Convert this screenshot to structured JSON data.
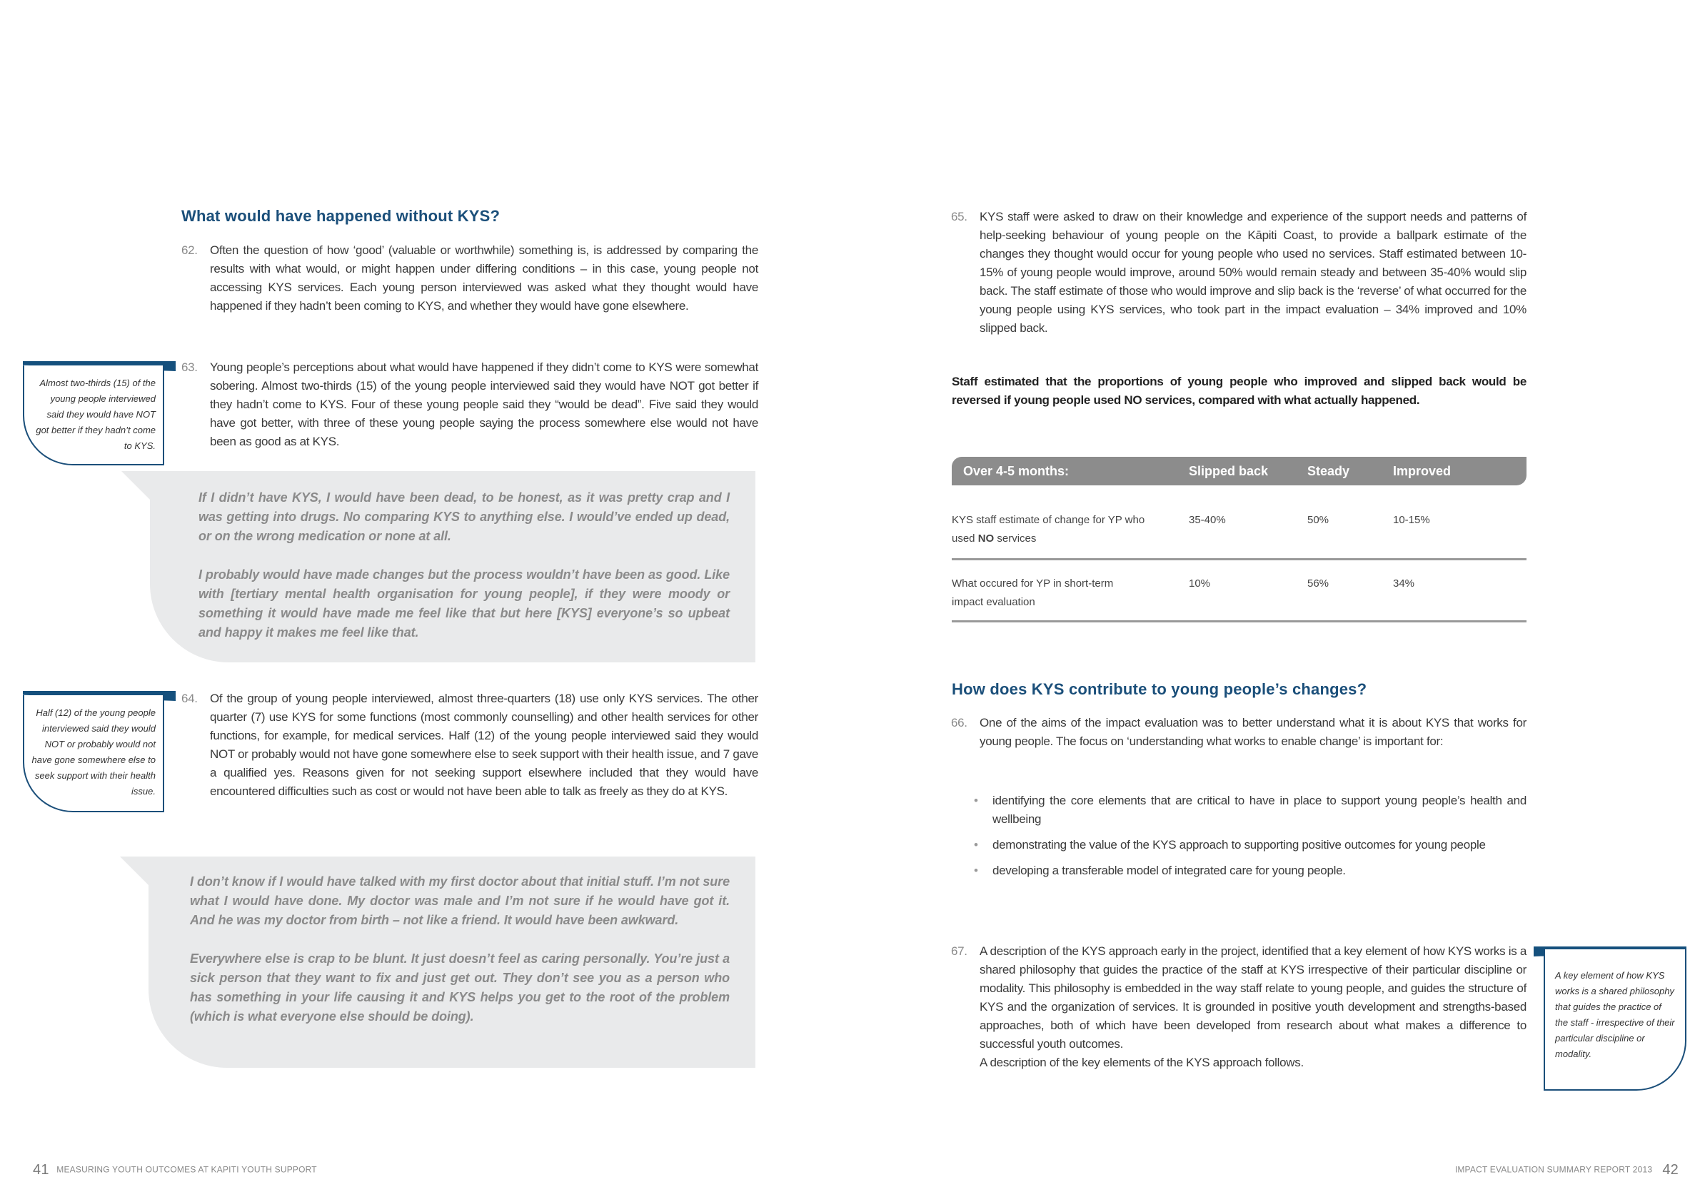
{
  "left_page": {
    "heading": "What would have happened without KYS?",
    "paragraphs": [
      {
        "num": "62.",
        "text": "Often the question of how ‘good’ (valuable or worthwhile) something is, is addressed by comparing the results with what would, or might happen under differing conditions – in this case, young people not accessing KYS services. Each young person interviewed was asked what they thought would have happened if they hadn’t been coming to KYS, and whether they would have gone elsewhere."
      },
      {
        "num": "63.",
        "text": "Young people’s perceptions about what would have happened if they didn’t come to KYS were somewhat sobering. Almost two-thirds (15) of the young people interviewed said they would have NOT got better if they hadn’t come to KYS. Four of these young people said they “would be dead”. Five said they would have got better, with three of these young people saying the process somewhere else would not have been as good as at KYS."
      },
      {
        "num": "64.",
        "text": "Of the group of young people interviewed, almost three-quarters (18) use only KYS services. The other quarter (7) use KYS for some functions (most commonly counselling) and other health services for other functions, for example, for medical services. Half (12) of the young people interviewed said they would NOT or probably would not have gone somewhere else to seek support with their health issue, and 7 gave a qualified yes. Reasons given for not seeking support elsewhere included that they would have encountered difficulties such as cost or would not have been able to talk as freely as they do at KYS."
      }
    ],
    "sidebars": [
      "Almost two-thirds (15) of the young people interviewed said they would have NOT got better if they hadn’t come to KYS.",
      "Half (12) of the young people interviewed said they would NOT or probably would not have gone somewhere else to seek support with their health issue."
    ],
    "quotes": [
      [
        "If I didn’t have KYS, I would have been dead, to be honest, as it was pretty crap and I was getting into drugs. No comparing KYS to anything else. I would’ve ended up dead, or on the wrong medication or none at all.",
        "I probably would have made changes but the process wouldn’t have been as good. Like with [tertiary mental health organisation for young people], if they were moody or something it would have made me feel like that but here [KYS] everyone’s so upbeat and happy it makes me feel like that."
      ],
      [
        "I don’t know if I would have talked with my first doctor about that initial stuff. I’m not sure what I would have done. My doctor was male and I’m not sure if he would have got it. And he was my doctor from birth – not like a friend. It would have been awkward.",
        "Everywhere else is crap to be blunt. It just doesn’t feel as caring personally. You’re just a sick person that they want to fix and just get out. They don’t see you as a person who has something in your life causing it and KYS helps you get to the root of the problem (which is what everyone else should be doing)."
      ]
    ],
    "footer": {
      "page": "41",
      "title": "MEASURING YOUTH OUTCOMES AT KAPITI YOUTH SUPPORT"
    }
  },
  "right_page": {
    "para65": {
      "num": "65.",
      "text": "KYS staff were asked to draw on their knowledge and experience of the support needs and patterns of help-seeking behaviour of young people on the Kāpiti Coast, to provide a ballpark estimate of the changes they thought would occur for young people who used no services. Staff estimated between 10-15% of young people would improve, around 50% would remain steady and between 35-40% would slip back. The staff estimate of those who would improve and slip back is the ‘reverse’ of what occurred for the young people using KYS services, who took part in the impact evaluation – 34% improved and 10% slipped back."
    },
    "bold_statement": "Staff estimated that the proportions of young people who improved and slipped back would be reversed if young people used NO services, compared with what actually happened.",
    "table": {
      "headers": [
        "Over 4-5 months:",
        "Slipped back",
        "Steady",
        "Improved"
      ],
      "rows": [
        {
          "label_pre": "KYS staff estimate of change for YP who used ",
          "label_bold": "NO",
          "label_post": " services",
          "values": [
            "35-40%",
            "50%",
            "10-15%"
          ]
        },
        {
          "label_pre": "What occured for YP in short-term impact evaluation",
          "label_bold": "",
          "label_post": "",
          "values": [
            "10%",
            "56%",
            "34%"
          ]
        }
      ]
    },
    "heading": "How does KYS contribute to young people’s changes?",
    "para66": {
      "num": "66.",
      "text": "One of the aims of the impact evaluation was to better understand what it is about KYS that works for young people. The focus on ‘understanding what works to enable change’ is important for:"
    },
    "bullets": [
      "identifying the core elements that are critical to have in place to support young people’s health and wellbeing",
      "demonstrating the value of the KYS approach to supporting positive outcomes for young people",
      "developing a transferable model of integrated care for young people."
    ],
    "para67": {
      "num": "67.",
      "text": "A description of the KYS approach early in the project, identified that a key element of how KYS works is a shared philosophy that guides the practice of the staff at KYS irrespective of their particular discipline or modality. This philosophy is embedded in the way staff relate to young people, and guides the structure of KYS and the organization of services. It is grounded in positive youth development and strengths-based approaches, both of which have been developed from research about what makes a difference to successful youth outcomes.",
      "text2": "A description of the key elements of the KYS approach follows."
    },
    "sidebar": "A key element of how KYS works is a shared philosophy that guides the practice of the staff - irrespective of their particular discipline or modality.",
    "footer": {
      "page": "42",
      "title": "IMPACT EVALUATION SUMMARY REPORT 2013"
    }
  },
  "colors": {
    "accent_blue": "#15507d",
    "quote_bg": "#e9eaeb",
    "table_header": "#8c8c8c"
  }
}
